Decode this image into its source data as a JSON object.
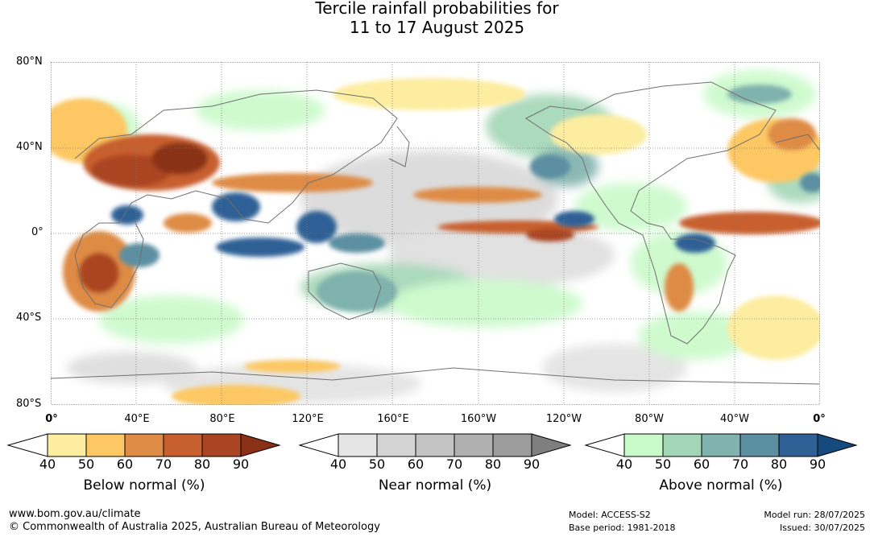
{
  "title_line1": "Tercile rainfall probabilities for",
  "title_line2": "11 to 17 August 2025",
  "lat_labels": [
    "80°N",
    "40°N",
    "0°",
    "40°S",
    "80°S"
  ],
  "lon_labels": [
    "0°",
    "40°E",
    "80°E",
    "120°E",
    "160°E",
    "160°W",
    "120°W",
    "80°W",
    "40°W",
    "0°"
  ],
  "legend_ticks": [
    "40",
    "50",
    "60",
    "70",
    "80",
    "90"
  ],
  "legends": [
    {
      "title": "Below normal (%)",
      "colors": [
        "#fdeda0",
        "#fdc863",
        "#de8b45",
        "#c85f2f",
        "#aa4524",
        "#8a3016"
      ]
    },
    {
      "title": "Near normal (%)",
      "colors": [
        "#e5e5e5",
        "#d4d4d4",
        "#c3c3c3",
        "#b0b0b0",
        "#9c9c9c",
        "#7f7f7f"
      ]
    },
    {
      "title": "Above normal (%)",
      "colors": [
        "#c9fac9",
        "#a3d6b6",
        "#80b2ae",
        "#5b8fa1",
        "#2f6095",
        "#154a7e"
      ]
    }
  ],
  "footer": {
    "url": "www.bom.gov.au/climate",
    "copyright": "© Commonwealth of Australia 2025, Australian Bureau of Meteorology",
    "model": "Model: ACCESS-S2",
    "base_period": "Base period: 1981-2018",
    "model_run": "Model run: 28/07/2025",
    "issued": "Issued: 30/07/2025"
  }
}
